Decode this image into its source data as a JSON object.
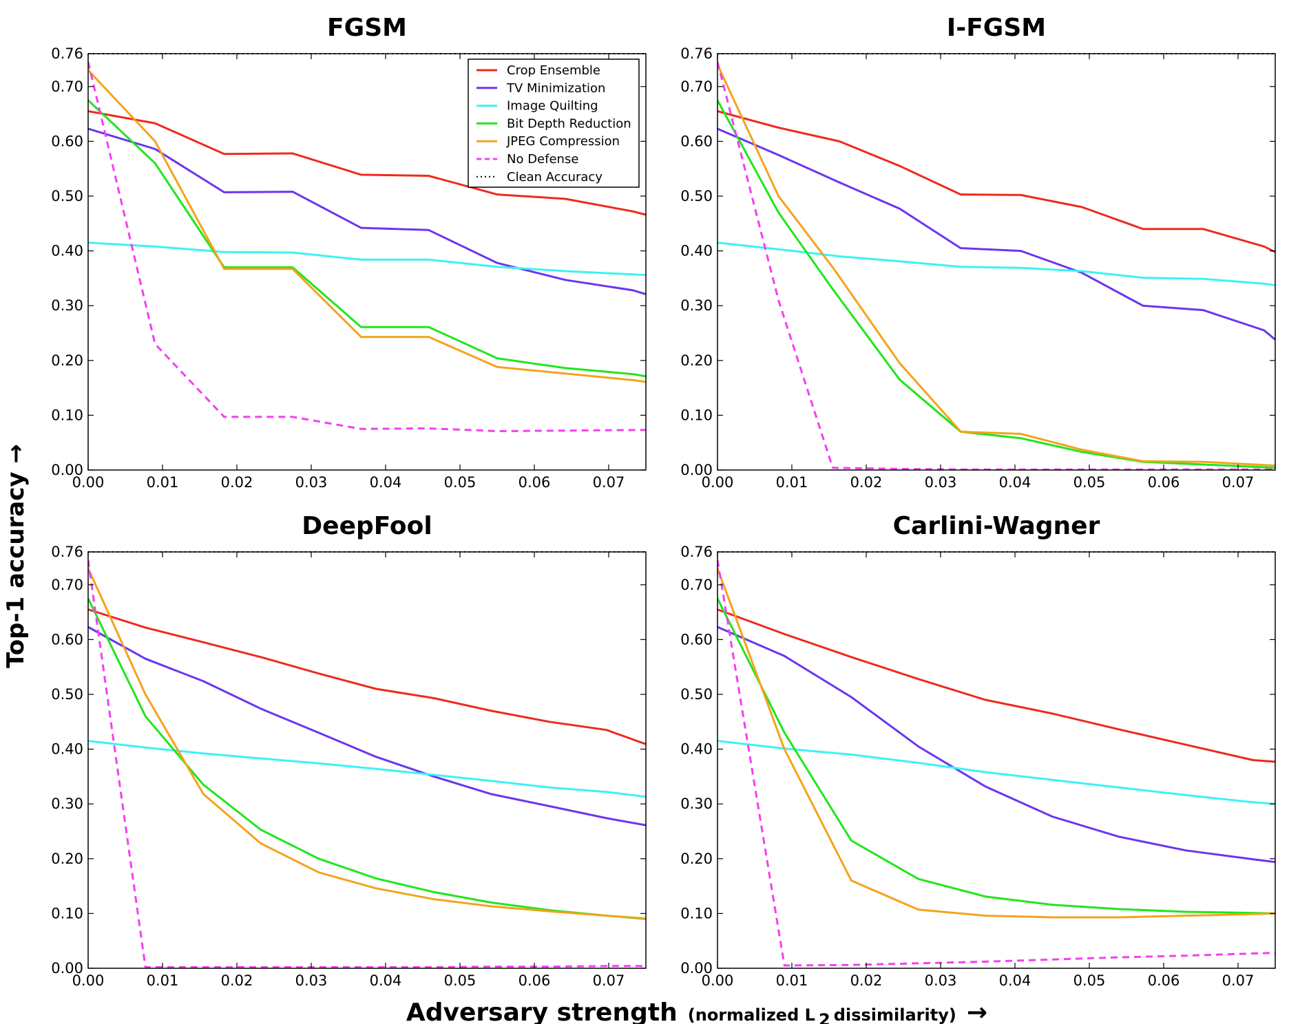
{
  "figure": {
    "ylabel": "Top-1 accuracy →",
    "xlabel_main": "Adversary strength",
    "xlabel_paren_open": "(normalized L",
    "xlabel_sub": "2",
    "xlabel_paren_close": " dissimilarity)",
    "xlabel_arrow": "→"
  },
  "legend": {
    "entries": [
      {
        "name": "Crop Ensemble",
        "color": "#ee2a1d",
        "style": "solid"
      },
      {
        "name": "TV Minimization",
        "color": "#6a35f0",
        "style": "solid"
      },
      {
        "name": "Image Quilting",
        "color": "#3df2f7",
        "style": "solid"
      },
      {
        "name": "Bit Depth Reduction",
        "color": "#20e61c",
        "style": "solid"
      },
      {
        "name": "JPEG Compression",
        "color": "#f4a31b",
        "style": "solid"
      },
      {
        "name": "No Defense",
        "color": "#f43ff0",
        "style": "dashed"
      },
      {
        "name": "Clean Accuracy",
        "color": "#000000",
        "style": "dotted"
      }
    ]
  },
  "chart_data": [
    {
      "type": "line",
      "title": "FGSM",
      "xlim": [
        0,
        0.075
      ],
      "ylim": [
        0,
        0.76
      ],
      "xticks": [
        "0.00",
        "0.01",
        "0.02",
        "0.03",
        "0.04",
        "0.05",
        "0.06",
        "0.07"
      ],
      "yticks": [
        "0.00",
        "0.10",
        "0.20",
        "0.30",
        "0.40",
        "0.50",
        "0.60",
        "0.70",
        "0.76"
      ],
      "clean_accuracy": 0.76,
      "legend": "top-right",
      "series": [
        {
          "name": "Crop Ensemble",
          "x": [
            0,
            0.009,
            0.0183,
            0.0275,
            0.0367,
            0.0458,
            0.055,
            0.0642,
            0.0733,
            0.075
          ],
          "y": [
            0.655,
            0.633,
            0.577,
            0.578,
            0.539,
            0.537,
            0.503,
            0.495,
            0.472,
            0.466
          ]
        },
        {
          "name": "TV Minimization",
          "x": [
            0,
            0.009,
            0.0183,
            0.0275,
            0.0367,
            0.0458,
            0.055,
            0.0642,
            0.0733,
            0.075
          ],
          "y": [
            0.623,
            0.586,
            0.507,
            0.508,
            0.442,
            0.438,
            0.378,
            0.347,
            0.328,
            0.321
          ]
        },
        {
          "name": "Image Quilting",
          "x": [
            0,
            0.009,
            0.0183,
            0.0275,
            0.0367,
            0.0458,
            0.055,
            0.0642,
            0.0733,
            0.075
          ],
          "y": [
            0.415,
            0.408,
            0.398,
            0.397,
            0.384,
            0.384,
            0.371,
            0.363,
            0.357,
            0.356
          ]
        },
        {
          "name": "Bit Depth Reduction",
          "x": [
            0,
            0.009,
            0.0183,
            0.0275,
            0.0367,
            0.0458,
            0.055,
            0.0642,
            0.0733,
            0.075
          ],
          "y": [
            0.675,
            0.56,
            0.37,
            0.37,
            0.261,
            0.261,
            0.204,
            0.186,
            0.175,
            0.171
          ]
        },
        {
          "name": "JPEG Compression",
          "x": [
            0,
            0.009,
            0.0183,
            0.0275,
            0.0367,
            0.0458,
            0.055,
            0.0642,
            0.0733,
            0.075
          ],
          "y": [
            0.73,
            0.6,
            0.367,
            0.367,
            0.243,
            0.243,
            0.188,
            0.176,
            0.164,
            0.161
          ]
        },
        {
          "name": "No Defense",
          "x": [
            0,
            0.009,
            0.0183,
            0.0275,
            0.0367,
            0.0458,
            0.055,
            0.0642,
            0.0733,
            0.075
          ],
          "y": [
            0.745,
            0.23,
            0.097,
            0.097,
            0.075,
            0.076,
            0.071,
            0.072,
            0.073,
            0.073
          ]
        }
      ]
    },
    {
      "type": "line",
      "title": "I-FGSM",
      "xlim": [
        0,
        0.075
      ],
      "ylim": [
        0,
        0.76
      ],
      "xticks": [
        "0.00",
        "0.01",
        "0.02",
        "0.03",
        "0.04",
        "0.05",
        "0.06",
        "0.07"
      ],
      "yticks": [
        "0.00",
        "0.10",
        "0.20",
        "0.30",
        "0.40",
        "0.50",
        "0.60",
        "0.70",
        "0.76"
      ],
      "clean_accuracy": 0.76,
      "series": [
        {
          "name": "Crop Ensemble",
          "x": [
            0,
            0.0082,
            0.0164,
            0.0245,
            0.0327,
            0.0408,
            0.049,
            0.0572,
            0.0653,
            0.0735,
            0.075
          ],
          "y": [
            0.655,
            0.625,
            0.6,
            0.555,
            0.503,
            0.502,
            0.48,
            0.44,
            0.44,
            0.408,
            0.398
          ]
        },
        {
          "name": "TV Minimization",
          "x": [
            0,
            0.0082,
            0.0164,
            0.0245,
            0.0327,
            0.0408,
            0.049,
            0.0572,
            0.0653,
            0.0735,
            0.075
          ],
          "y": [
            0.623,
            0.575,
            0.525,
            0.477,
            0.405,
            0.4,
            0.36,
            0.3,
            0.292,
            0.255,
            0.238
          ]
        },
        {
          "name": "Image Quilting",
          "x": [
            0,
            0.0082,
            0.0164,
            0.0245,
            0.0327,
            0.0408,
            0.049,
            0.0572,
            0.0653,
            0.0735,
            0.075
          ],
          "y": [
            0.415,
            0.403,
            0.39,
            0.381,
            0.371,
            0.369,
            0.363,
            0.351,
            0.349,
            0.34,
            0.337
          ]
        },
        {
          "name": "Bit Depth Reduction",
          "x": [
            0,
            0.0082,
            0.0155,
            0.0245,
            0.0327,
            0.0408,
            0.049,
            0.0572,
            0.0653,
            0.0735,
            0.075
          ],
          "y": [
            0.675,
            0.47,
            0.33,
            0.165,
            0.07,
            0.058,
            0.033,
            0.015,
            0.01,
            0.005,
            0.004
          ]
        },
        {
          "name": "JPEG Compression",
          "x": [
            0,
            0.0082,
            0.0155,
            0.0245,
            0.0327,
            0.0408,
            0.049,
            0.0572,
            0.0653,
            0.0735,
            0.075
          ],
          "y": [
            0.74,
            0.5,
            0.37,
            0.195,
            0.07,
            0.066,
            0.037,
            0.016,
            0.015,
            0.009,
            0.008
          ]
        },
        {
          "name": "No Defense",
          "x": [
            0,
            0.0082,
            0.0155,
            0.0245,
            0.0327,
            0.0408,
            0.049,
            0.0572,
            0.0653,
            0.0735,
            0.075
          ],
          "y": [
            0.745,
            0.31,
            0.004,
            0.002,
            0.001,
            0.001,
            0.001,
            0.001,
            0.001,
            0.001,
            0.001
          ]
        }
      ]
    },
    {
      "type": "line",
      "title": "DeepFool",
      "xlim": [
        0,
        0.075
      ],
      "ylim": [
        0,
        0.76
      ],
      "xticks": [
        "0.00",
        "0.01",
        "0.02",
        "0.03",
        "0.04",
        "0.05",
        "0.06",
        "0.07"
      ],
      "yticks": [
        "0.00",
        "0.10",
        "0.20",
        "0.30",
        "0.40",
        "0.50",
        "0.60",
        "0.70",
        "0.76"
      ],
      "clean_accuracy": 0.76,
      "series": [
        {
          "name": "Crop Ensemble",
          "x": [
            0,
            0.0077,
            0.0155,
            0.0232,
            0.031,
            0.0387,
            0.0465,
            0.0542,
            0.062,
            0.0697,
            0.075
          ],
          "y": [
            0.655,
            0.622,
            0.595,
            0.568,
            0.538,
            0.51,
            0.493,
            0.47,
            0.45,
            0.435,
            0.409
          ]
        },
        {
          "name": "TV Minimization",
          "x": [
            0,
            0.0077,
            0.0155,
            0.0232,
            0.031,
            0.0387,
            0.0465,
            0.0542,
            0.062,
            0.0697,
            0.075
          ],
          "y": [
            0.623,
            0.565,
            0.524,
            0.474,
            0.43,
            0.386,
            0.35,
            0.318,
            0.296,
            0.274,
            0.261
          ]
        },
        {
          "name": "Image Quilting",
          "x": [
            0,
            0.0077,
            0.0155,
            0.0232,
            0.031,
            0.0387,
            0.0465,
            0.0542,
            0.062,
            0.0697,
            0.075
          ],
          "y": [
            0.415,
            0.403,
            0.392,
            0.383,
            0.374,
            0.364,
            0.353,
            0.342,
            0.33,
            0.322,
            0.313
          ]
        },
        {
          "name": "Bit Depth Reduction",
          "x": [
            0,
            0.0077,
            0.0155,
            0.0232,
            0.031,
            0.0387,
            0.0465,
            0.0542,
            0.062,
            0.0697,
            0.075
          ],
          "y": [
            0.675,
            0.46,
            0.335,
            0.253,
            0.2,
            0.164,
            0.139,
            0.12,
            0.106,
            0.096,
            0.09
          ]
        },
        {
          "name": "JPEG Compression",
          "x": [
            0,
            0.0077,
            0.0155,
            0.0232,
            0.031,
            0.0387,
            0.0465,
            0.0542,
            0.062,
            0.0697,
            0.075
          ],
          "y": [
            0.73,
            0.5,
            0.318,
            0.228,
            0.175,
            0.146,
            0.126,
            0.113,
            0.104,
            0.096,
            0.091
          ]
        },
        {
          "name": "No Defense",
          "x": [
            0,
            0.0077,
            0.0155,
            0.0232,
            0.031,
            0.0387,
            0.0465,
            0.0542,
            0.062,
            0.0697,
            0.075
          ],
          "y": [
            0.745,
            0.002,
            0.002,
            0.002,
            0.002,
            0.002,
            0.002,
            0.003,
            0.003,
            0.004,
            0.004
          ]
        }
      ]
    },
    {
      "type": "line",
      "title": "Carlini-Wagner",
      "xlim": [
        0,
        0.075
      ],
      "ylim": [
        0,
        0.76
      ],
      "xticks": [
        "0.00",
        "0.01",
        "0.02",
        "0.03",
        "0.04",
        "0.05",
        "0.06",
        "0.07"
      ],
      "yticks": [
        "0.00",
        "0.10",
        "0.20",
        "0.30",
        "0.40",
        "0.50",
        "0.60",
        "0.70",
        "0.76"
      ],
      "clean_accuracy": 0.76,
      "series": [
        {
          "name": "Crop Ensemble",
          "x": [
            0,
            0.009,
            0.018,
            0.027,
            0.036,
            0.045,
            0.054,
            0.063,
            0.072,
            0.075
          ],
          "y": [
            0.655,
            0.61,
            0.568,
            0.528,
            0.49,
            0.465,
            0.436,
            0.408,
            0.38,
            0.377
          ]
        },
        {
          "name": "TV Minimization",
          "x": [
            0,
            0.009,
            0.018,
            0.027,
            0.036,
            0.045,
            0.054,
            0.063,
            0.072,
            0.075
          ],
          "y": [
            0.623,
            0.57,
            0.495,
            0.405,
            0.332,
            0.277,
            0.24,
            0.215,
            0.199,
            0.194
          ]
        },
        {
          "name": "Image Quilting",
          "x": [
            0,
            0.009,
            0.018,
            0.027,
            0.036,
            0.045,
            0.054,
            0.063,
            0.072,
            0.075
          ],
          "y": [
            0.415,
            0.401,
            0.39,
            0.375,
            0.358,
            0.344,
            0.33,
            0.316,
            0.303,
            0.3
          ]
        },
        {
          "name": "Bit Depth Reduction",
          "x": [
            0,
            0.009,
            0.018,
            0.027,
            0.036,
            0.045,
            0.054,
            0.063,
            0.072,
            0.075
          ],
          "y": [
            0.675,
            0.43,
            0.233,
            0.163,
            0.131,
            0.116,
            0.108,
            0.103,
            0.101,
            0.1
          ]
        },
        {
          "name": "JPEG Compression",
          "x": [
            0,
            0.009,
            0.018,
            0.027,
            0.036,
            0.045,
            0.054,
            0.063,
            0.072,
            0.075
          ],
          "y": [
            0.73,
            0.4,
            0.16,
            0.107,
            0.096,
            0.093,
            0.093,
            0.096,
            0.099,
            0.1
          ]
        },
        {
          "name": "No Defense",
          "x": [
            0,
            0.009,
            0.018,
            0.027,
            0.036,
            0.045,
            0.054,
            0.063,
            0.072,
            0.075
          ],
          "y": [
            0.745,
            0.005,
            0.006,
            0.009,
            0.012,
            0.016,
            0.02,
            0.023,
            0.027,
            0.028
          ]
        }
      ]
    }
  ]
}
